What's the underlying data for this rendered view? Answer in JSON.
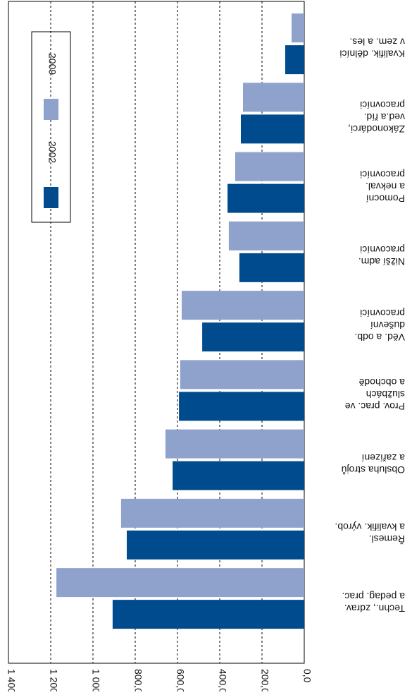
{
  "chart_data": {
    "type": "bar",
    "categories": [
      [
        "Techn., zdrav.",
        "a pedag. prac."
      ],
      [
        "Řemesl.",
        "a kvalifik. výrob."
      ],
      [
        "Obsluha strojů",
        "a zařízení"
      ],
      [
        "Prov. prac. ve",
        "službách",
        "a obchodě"
      ],
      [
        "Věd. a odb.",
        "duševní",
        "pracovníci"
      ],
      [
        "Nižší adm.",
        "pracovníci"
      ],
      [
        "Pomocní",
        "a nekval.",
        "pracovníci"
      ],
      [
        "Zákonodárci,",
        "ved.a říd.",
        "pracovníci"
      ],
      [
        "Kvalifik. dělníci",
        "v zem. a les."
      ]
    ],
    "series": [
      {
        "name": "2002",
        "color": "#004b8d",
        "values": [
          907,
          840,
          623,
          593,
          483,
          307,
          363,
          300,
          90
        ]
      },
      {
        "name": "2009",
        "color": "#8fa2cb",
        "values": [
          1173,
          867,
          657,
          587,
          580,
          357,
          327,
          290,
          60
        ]
      }
    ],
    "ylim": [
      0,
      1400
    ],
    "yticks": [
      {
        "value": 0,
        "label": "0,0"
      },
      {
        "value": 200,
        "label": "200,0"
      },
      {
        "value": 400,
        "label": "400,0"
      },
      {
        "value": 600,
        "label": "600,0"
      },
      {
        "value": 800,
        "label": "800,0"
      },
      {
        "value": 1000,
        "label": "1 000,0"
      },
      {
        "value": 1200,
        "label": "1 200,0"
      },
      {
        "value": 1400,
        "label": "1 400,0"
      }
    ],
    "grid": true
  }
}
